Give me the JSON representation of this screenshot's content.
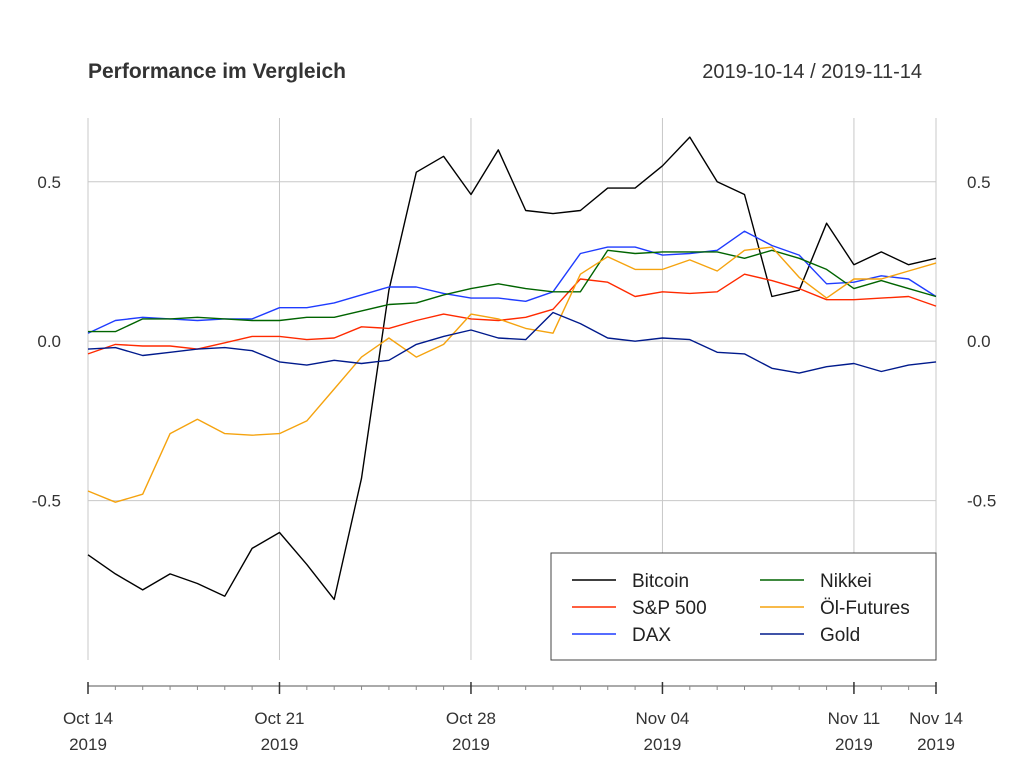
{
  "chart_data": {
    "type": "line",
    "title": "Performance im Vergleich",
    "date_range": "2019-10-14 / 2019-11-14",
    "xlabel": "",
    "ylabel": "",
    "x_start": "2019-10-14",
    "x_end": "2019-11-14",
    "ylim": [
      -1.0,
      0.7
    ],
    "y_ticks": [
      {
        "value": -0.5,
        "label": "-0.5"
      },
      {
        "value": 0.0,
        "label": "0.0"
      },
      {
        "value": 0.5,
        "label": "0.5"
      }
    ],
    "x_ticks": [
      {
        "date": "2019-10-14",
        "line1": "Oct 14",
        "line2": "2019"
      },
      {
        "date": "2019-10-21",
        "line1": "Oct 21",
        "line2": "2019"
      },
      {
        "date": "2019-10-28",
        "line1": "Oct 28",
        "line2": "2019"
      },
      {
        "date": "2019-11-04",
        "line1": "Nov 04",
        "line2": "2019"
      },
      {
        "date": "2019-11-11",
        "line1": "Nov 11",
        "line2": "2019"
      },
      {
        "date": "2019-11-14",
        "line1": "Nov 14",
        "line2": "2019"
      }
    ],
    "grid": true,
    "legend_position": "bottom-right",
    "dates": [
      "2019-10-14",
      "2019-10-15",
      "2019-10-16",
      "2019-10-17",
      "2019-10-18",
      "2019-10-19",
      "2019-10-20",
      "2019-10-21",
      "2019-10-22",
      "2019-10-23",
      "2019-10-24",
      "2019-10-25",
      "2019-10-26",
      "2019-10-27",
      "2019-10-28",
      "2019-10-29",
      "2019-10-30",
      "2019-10-31",
      "2019-11-01",
      "2019-11-02",
      "2019-11-03",
      "2019-11-04",
      "2019-11-05",
      "2019-11-06",
      "2019-11-07",
      "2019-11-08",
      "2019-11-09",
      "2019-11-10",
      "2019-11-11",
      "2019-11-12",
      "2019-11-13",
      "2019-11-14"
    ],
    "series": [
      {
        "name": "Bitcoin",
        "color": "#000000",
        "values": [
          -0.67,
          -0.73,
          -0.78,
          -0.73,
          -0.76,
          -0.8,
          -0.65,
          -0.6,
          -0.7,
          -0.81,
          -0.43,
          0.16,
          0.53,
          0.58,
          0.46,
          0.6,
          0.41,
          0.4,
          0.41,
          0.48,
          0.48,
          0.55,
          0.64,
          0.5,
          0.46,
          0.14,
          0.16,
          0.37,
          0.24,
          0.28,
          0.24,
          0.26
        ]
      },
      {
        "name": "S&P 500",
        "color": "#ff2a00",
        "values": [
          -0.04,
          -0.01,
          -0.015,
          -0.015,
          -0.025,
          -0.005,
          0.015,
          0.015,
          0.005,
          0.01,
          0.045,
          0.04,
          0.065,
          0.085,
          0.07,
          0.065,
          0.075,
          0.1,
          0.195,
          0.185,
          0.14,
          0.155,
          0.15,
          0.155,
          0.21,
          0.19,
          0.165,
          0.13,
          0.13,
          0.135,
          0.14,
          0.11
        ]
      },
      {
        "name": "DAX",
        "color": "#1f3cff",
        "values": [
          0.025,
          0.065,
          0.075,
          0.07,
          0.065,
          0.07,
          0.07,
          0.105,
          0.105,
          0.12,
          0.145,
          0.17,
          0.17,
          0.15,
          0.135,
          0.135,
          0.125,
          0.155,
          0.275,
          0.295,
          0.295,
          0.27,
          0.275,
          0.285,
          0.345,
          0.3,
          0.27,
          0.18,
          0.185,
          0.205,
          0.195,
          0.14
        ]
      },
      {
        "name": "Nikkei",
        "color": "#006400",
        "values": [
          0.03,
          0.03,
          0.07,
          0.07,
          0.075,
          0.07,
          0.065,
          0.065,
          0.075,
          0.075,
          0.095,
          0.115,
          0.12,
          0.145,
          0.165,
          0.18,
          0.165,
          0.155,
          0.155,
          0.285,
          0.275,
          0.28,
          0.28,
          0.28,
          0.26,
          0.285,
          0.26,
          0.225,
          0.165,
          0.19,
          0.165,
          0.14
        ]
      },
      {
        "name": "Öl-Futures",
        "color": "#f5a30f",
        "values": [
          -0.47,
          -0.505,
          -0.48,
          -0.29,
          -0.245,
          -0.29,
          -0.295,
          -0.29,
          -0.25,
          -0.15,
          -0.05,
          0.01,
          -0.05,
          -0.01,
          0.085,
          0.07,
          0.04,
          0.025,
          0.21,
          0.265,
          0.225,
          0.225,
          0.255,
          0.22,
          0.285,
          0.295,
          0.2,
          0.135,
          0.195,
          0.195,
          0.22,
          0.245
        ]
      },
      {
        "name": "Gold",
        "color": "#001a8c",
        "values": [
          -0.025,
          -0.02,
          -0.045,
          -0.035,
          -0.025,
          -0.02,
          -0.03,
          -0.065,
          -0.075,
          -0.06,
          -0.07,
          -0.06,
          -0.01,
          0.015,
          0.035,
          0.01,
          0.005,
          0.09,
          0.055,
          0.01,
          0.0,
          0.01,
          0.005,
          -0.035,
          -0.04,
          -0.085,
          -0.1,
          -0.08,
          -0.07,
          -0.095,
          -0.075,
          -0.065
        ]
      }
    ]
  }
}
